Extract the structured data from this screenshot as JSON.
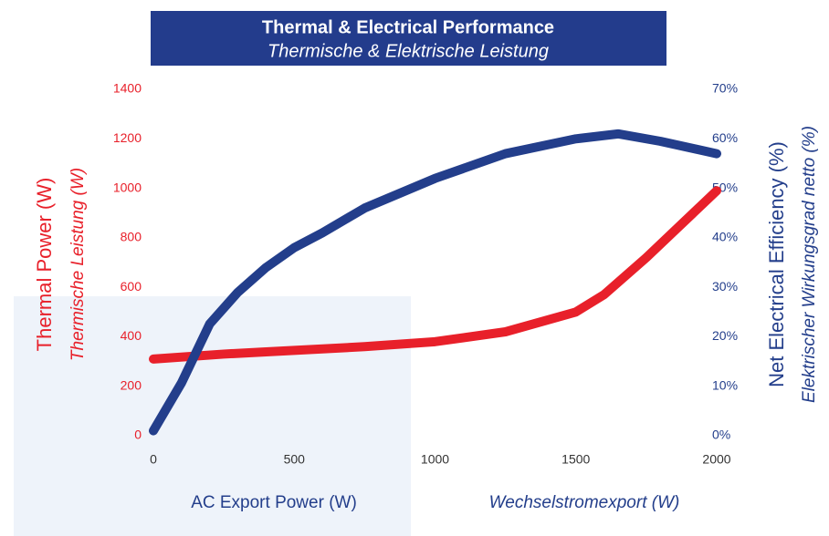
{
  "chart_data": {
    "type": "line",
    "title": "Thermal & Electrical Performance",
    "subtitle": "Thermische & Elektrische Leistung",
    "y_label": "Thermal Power (W)",
    "y_label_secondary": "Thermische Leistung (W)",
    "y2_label": "Net Electrical Efficiency (%)",
    "y2_label_secondary": "Elektrischer Wirkungsgrad netto (%)",
    "x_label": "AC Export Power (W)",
    "x_label_secondary": "Wechselstromexport (W)",
    "xlim": [
      0,
      2000
    ],
    "xticks": [
      0,
      500,
      1000,
      1500,
      2000
    ],
    "ylim": [
      0,
      1400
    ],
    "yticks": [
      0,
      200,
      400,
      600,
      800,
      1000,
      1200,
      1400
    ],
    "y2lim": [
      0,
      70
    ],
    "y2ticks": [
      {
        "value": 0,
        "label": "0%"
      },
      {
        "value": 10,
        "label": "10%"
      },
      {
        "value": 20,
        "label": "20%"
      },
      {
        "value": 30,
        "label": "30%"
      },
      {
        "value": 40,
        "label": "40%"
      },
      {
        "value": 50,
        "label": "50%"
      },
      {
        "value": 60,
        "label": "60%"
      },
      {
        "value": 70,
        "label": "70%"
      }
    ],
    "series": [
      {
        "color": "#e8202a",
        "x": [
          0,
          250,
          500,
          750,
          1000,
          1250,
          1500,
          1600,
          1750,
          2000
        ],
        "values": [
          310,
          330,
          345,
          360,
          380,
          420,
          500,
          570,
          720,
          990
        ]
      },
      {
        "color": "#233e8b",
        "axis": "y2",
        "x": [
          0,
          100,
          200,
          300,
          400,
          500,
          600,
          750,
          1000,
          1250,
          1500,
          1650,
          1800,
          2000
        ],
        "values": [
          1,
          10.7,
          22.6,
          29,
          34,
          38,
          41,
          46,
          52,
          57,
          60,
          61,
          59.5,
          57
        ]
      }
    ]
  }
}
